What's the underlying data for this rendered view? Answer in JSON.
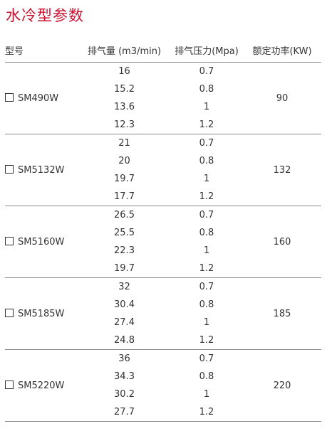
{
  "title": "水冷型参数",
  "headers": {
    "model": "型号",
    "flow": "排气量 (m3/min)",
    "pressure": "排气压力(Mpa)",
    "power": "额定功率(KW)"
  },
  "groups": [
    {
      "model": "SM490W",
      "power": "90",
      "rows": [
        {
          "flow": "16",
          "pressure": "0.7"
        },
        {
          "flow": "15.2",
          "pressure": "0.8"
        },
        {
          "flow": "13.6",
          "pressure": "1"
        },
        {
          "flow": "12.3",
          "pressure": "1.2"
        }
      ]
    },
    {
      "model": "SM5132W",
      "power": "132",
      "rows": [
        {
          "flow": "21",
          "pressure": "0.7"
        },
        {
          "flow": "20",
          "pressure": "0.8"
        },
        {
          "flow": "19.7",
          "pressure": "1"
        },
        {
          "flow": "17.7",
          "pressure": "1.2"
        }
      ]
    },
    {
      "model": "SM5160W",
      "power": "160",
      "rows": [
        {
          "flow": "26.5",
          "pressure": "0.7"
        },
        {
          "flow": "25.5",
          "pressure": "0.8"
        },
        {
          "flow": "22.3",
          "pressure": "1"
        },
        {
          "flow": "19.7",
          "pressure": "1.2"
        }
      ]
    },
    {
      "model": "SM5185W",
      "power": "185",
      "rows": [
        {
          "flow": "32",
          "pressure": "0.7"
        },
        {
          "flow": "30.4",
          "pressure": "0.8"
        },
        {
          "flow": "27.4",
          "pressure": "1"
        },
        {
          "flow": "24.8",
          "pressure": "1.2"
        }
      ]
    },
    {
      "model": "SM5220W",
      "power": "220",
      "rows": [
        {
          "flow": "36",
          "pressure": "0.7"
        },
        {
          "flow": "34.3",
          "pressure": "0.8"
        },
        {
          "flow": "30.2",
          "pressure": "1"
        },
        {
          "flow": "27.7",
          "pressure": "1.2"
        }
      ]
    }
  ]
}
